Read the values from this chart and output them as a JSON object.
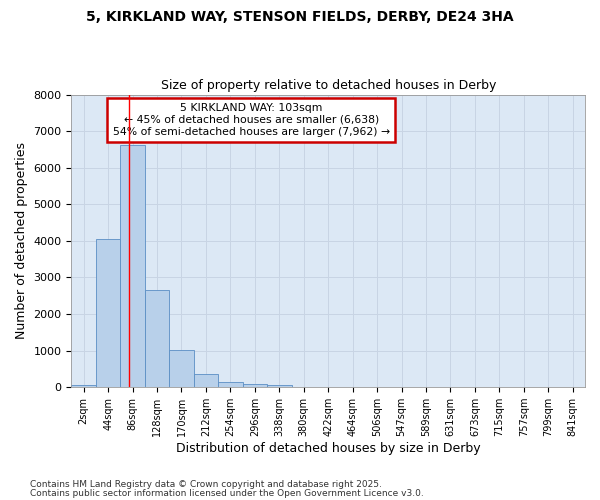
{
  "title_line1": "5, KIRKLAND WAY, STENSON FIELDS, DERBY, DE24 3HA",
  "title_line2": "Size of property relative to detached houses in Derby",
  "xlabel": "Distribution of detached houses by size in Derby",
  "ylabel": "Number of detached properties",
  "categories": [
    "2sqm",
    "44sqm",
    "86sqm",
    "128sqm",
    "170sqm",
    "212sqm",
    "254sqm",
    "296sqm",
    "338sqm",
    "380sqm",
    "422sqm",
    "464sqm",
    "506sqm",
    "547sqm",
    "589sqm",
    "631sqm",
    "673sqm",
    "715sqm",
    "757sqm",
    "799sqm",
    "841sqm"
  ],
  "bar_heights": [
    70,
    4050,
    6620,
    2650,
    1010,
    355,
    140,
    90,
    55,
    0,
    0,
    0,
    0,
    0,
    0,
    0,
    0,
    0,
    0,
    0,
    0
  ],
  "bar_color": "#b8d0ea",
  "bar_edge_color": "#5b8ec4",
  "grid_color": "#c8d4e4",
  "background_color": "#ffffff",
  "plot_bg_color": "#dce8f5",
  "red_line_x": 1.85,
  "annotation_title": "5 KIRKLAND WAY: 103sqm",
  "annotation_line1": "← 45% of detached houses are smaller (6,638)",
  "annotation_line2": "54% of semi-detached houses are larger (7,962) →",
  "annotation_box_color": "#ffffff",
  "annotation_box_edge": "#cc0000",
  "ylim": [
    0,
    8000
  ],
  "yticks": [
    0,
    1000,
    2000,
    3000,
    4000,
    5000,
    6000,
    7000,
    8000
  ],
  "footnote1": "Contains HM Land Registry data © Crown copyright and database right 2025.",
  "footnote2": "Contains public sector information licensed under the Open Government Licence v3.0."
}
